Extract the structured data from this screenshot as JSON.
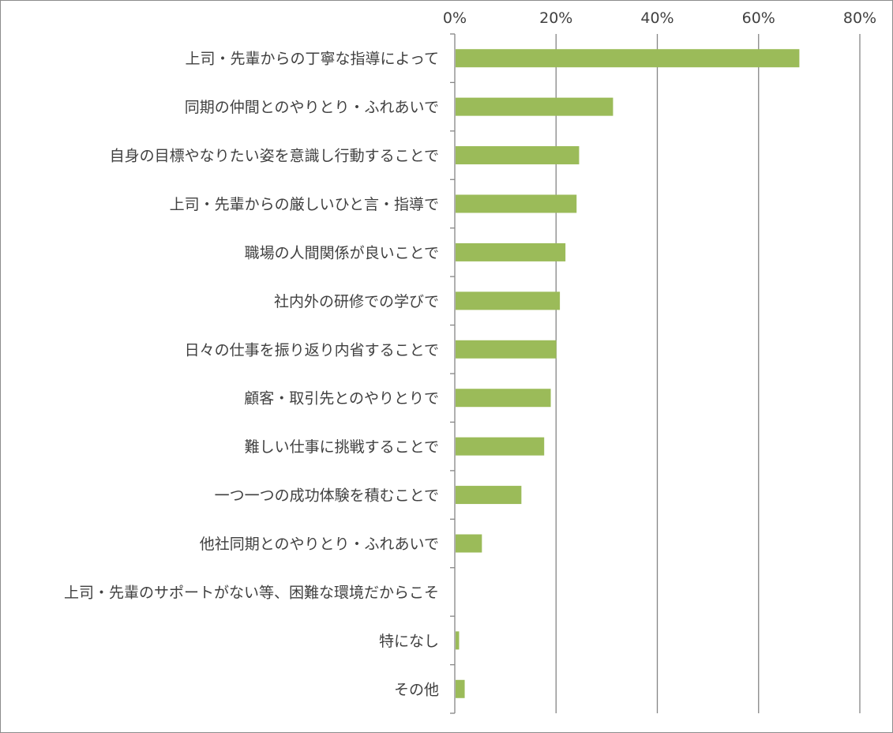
{
  "chart_data": {
    "type": "bar",
    "orientation": "horizontal",
    "title": "",
    "xlabel": "",
    "ylabel": "",
    "xlim": [
      0,
      80
    ],
    "x_ticks": [
      "0%",
      "20%",
      "40%",
      "60%",
      "80%"
    ],
    "x_axis_position": "top",
    "grid": true,
    "bar_color": "#9bbb59",
    "categories": [
      "上司・先輩からの丁寧な指導によって",
      "同期の仲間とのやりとり・ふれあいで",
      "自身の目標やなりたい姿を意識し行動することで",
      "上司・先輩からの厳しいひと言・指導で",
      "職場の人間関係が良いことで",
      "社内外の研修での学びで",
      "日々の仕事を振り返り内省することで",
      "顧客・取引先とのやりとりで",
      "難しい仕事に挑戦することで",
      "一つ一つの成功体験を積むことで",
      "他社同期とのやりとり・ふれあいで",
      "上司・先輩のサポートがない等、困難な環境だからこそ",
      "特になし",
      "その他"
    ],
    "values": [
      67.9,
      31.1,
      24.4,
      23.9,
      21.7,
      20.6,
      19.9,
      18.8,
      17.5,
      13.0,
      5.2,
      0,
      0.7,
      1.8
    ]
  }
}
